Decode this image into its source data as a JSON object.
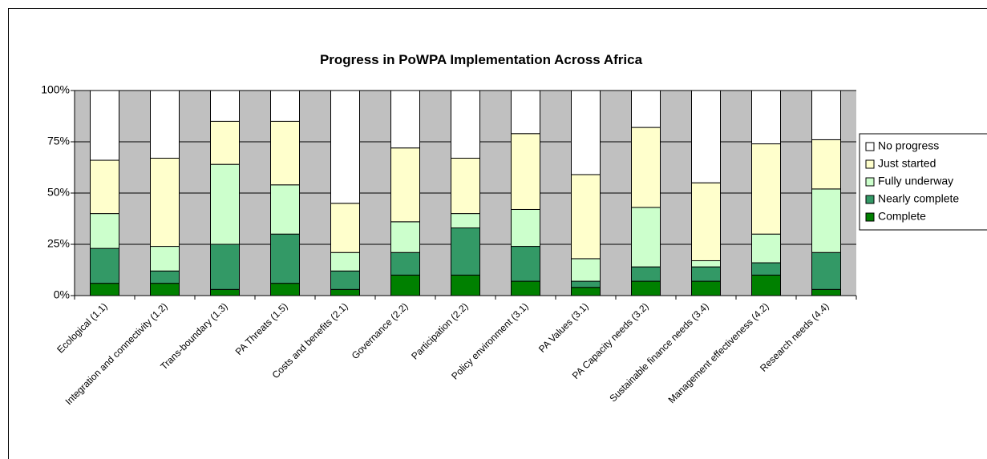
{
  "chart_data": {
    "type": "stacked_bar",
    "title": "Progress in PoWPA Implementation Across Africa",
    "categories": [
      "Ecological (1.1)",
      "Integration and connectivity (1.2)",
      "Trans-boundary (1.3)",
      "PA Threats (1.5)",
      "Costs and benefits (2.1)",
      "Governance (2.2)",
      "Participation (2.2)",
      "Policy environment (3.1)",
      "PA Values (3.1)",
      "PA Capacity needs (3.2)",
      "Sustainable finance needs (3.4)",
      "Management effectiveness (4.2)",
      "Research needs (4.4)"
    ],
    "series": [
      {
        "name": "No progress",
        "color": "#ffffff",
        "values": [
          34,
          33,
          15,
          15,
          55,
          28,
          33,
          21,
          41,
          18,
          45,
          26,
          24
        ]
      },
      {
        "name": "Just started",
        "color": "#ffffcc",
        "values": [
          26,
          43,
          21,
          31,
          24,
          36,
          27,
          37,
          41,
          39,
          38,
          44,
          24
        ]
      },
      {
        "name": "Fully underway",
        "color": "#ccffcc",
        "values": [
          17,
          12,
          39,
          24,
          9,
          15,
          7,
          18,
          11,
          29,
          3,
          14,
          31
        ]
      },
      {
        "name": "Nearly complete",
        "color": "#339966",
        "values": [
          17,
          6,
          22,
          24,
          9,
          11,
          23,
          17,
          3,
          7,
          7,
          6,
          18
        ]
      },
      {
        "name": "Complete",
        "color": "#008000",
        "values": [
          6,
          6,
          3,
          6,
          3,
          10,
          10,
          7,
          4,
          7,
          7,
          10,
          3
        ]
      }
    ],
    "ylim": [
      0,
      100
    ],
    "yticks": [
      {
        "value": 0,
        "label": "0%"
      },
      {
        "value": 25,
        "label": "25%"
      },
      {
        "value": 50,
        "label": "50%"
      },
      {
        "value": 75,
        "label": "75%"
      },
      {
        "value": 100,
        "label": "100%"
      }
    ],
    "grid": true,
    "legend": "right"
  }
}
